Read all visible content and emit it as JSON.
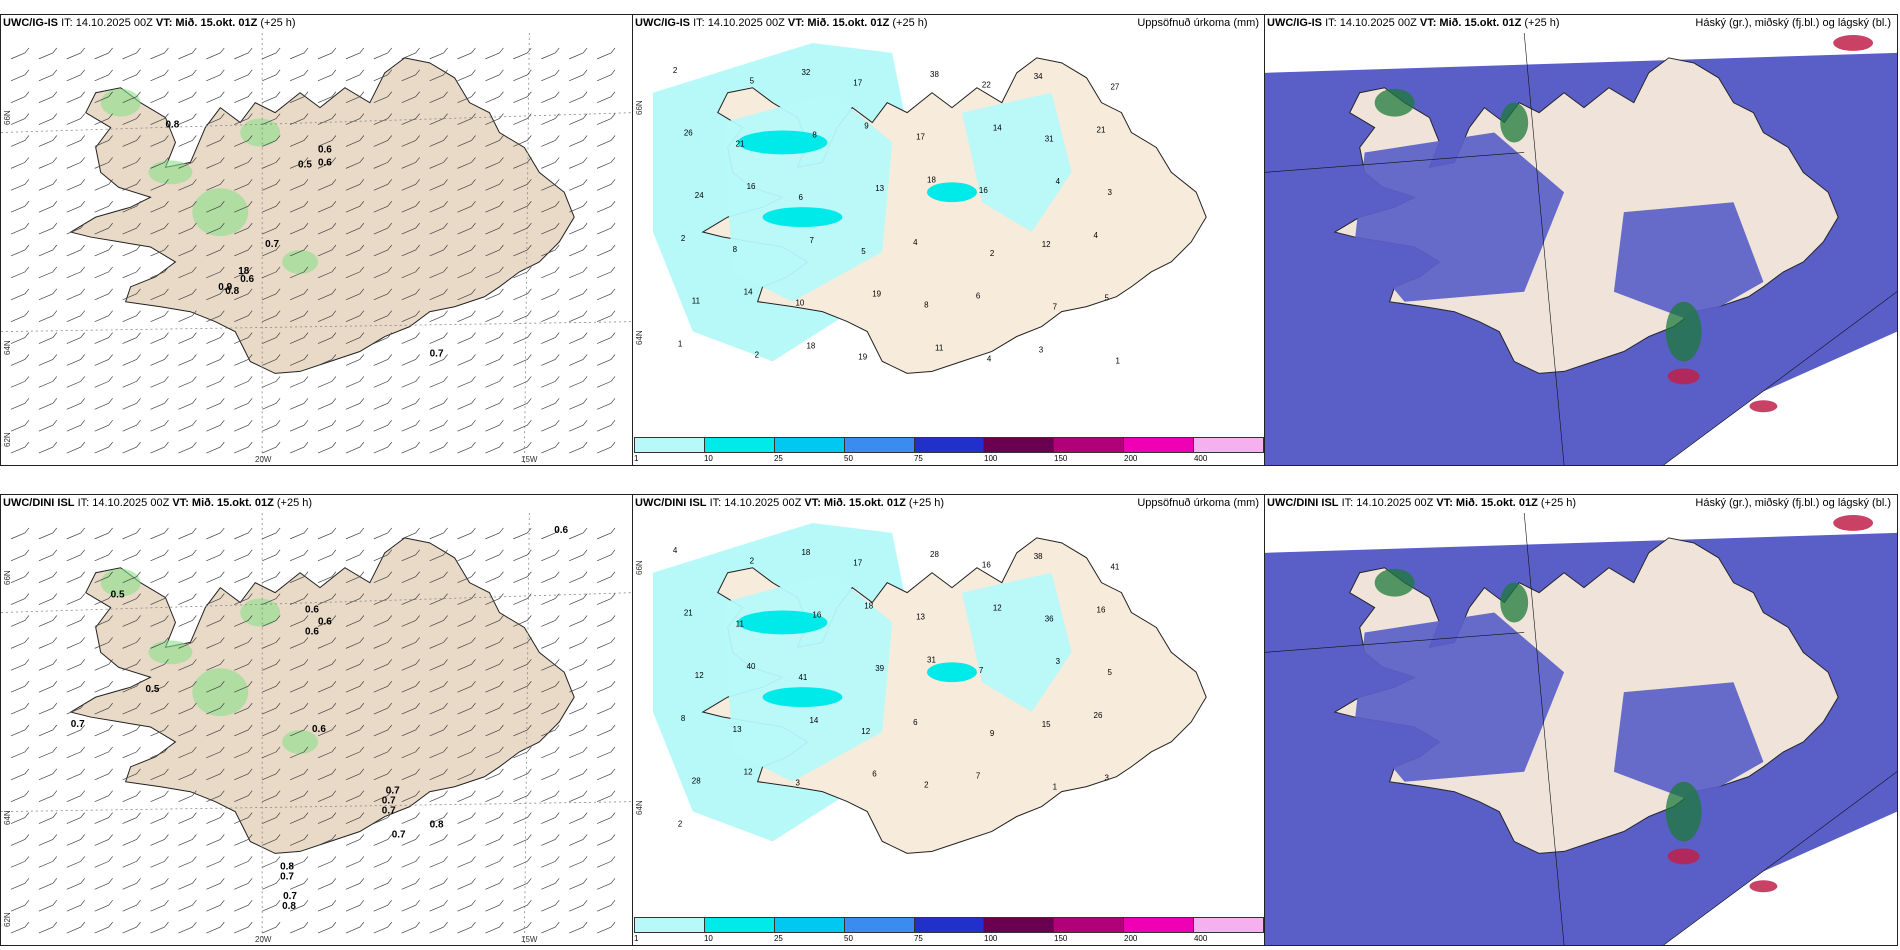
{
  "rows": [
    {
      "wind": {
        "model": "UWC/IG-IS",
        "it": "IT: 14.10.2025 00Z",
        "vt": "VT: Mið. 15.okt. 01Z",
        "lead": "(+25 h)",
        "lat_labels": [
          "66N",
          "64N",
          "62N"
        ],
        "lon_labels": [
          "20W",
          "15W"
        ],
        "values": [
          "0.8",
          "0.6",
          "0.5",
          "0.6",
          "0.7",
          "18",
          "0.6",
          "0.9",
          "0.8",
          "0.7"
        ]
      },
      "precip": {
        "model": "UWC/IG-IS",
        "it": "IT: 14.10.2025 00Z",
        "vt": "VT: Mið. 15.okt. 01Z",
        "lead": "(+25 h)",
        "right_title": "Uppsöfnuð úrkoma (mm)",
        "lat_labels": [
          "66N",
          "64N"
        ],
        "values": [
          "2",
          "5",
          "32",
          "17",
          "38",
          "22",
          "34",
          "27",
          "26",
          "21",
          "8",
          "9",
          "17",
          "14",
          "31",
          "21",
          "24",
          "16",
          "6",
          "13",
          "18",
          "16",
          "4",
          "3",
          "2",
          "8",
          "7",
          "5",
          "4",
          "2",
          "12",
          "4",
          "11",
          "14",
          "10",
          "19",
          "8",
          "6",
          "7",
          "5",
          "1",
          "2",
          "18",
          "19",
          "11",
          "4",
          "3",
          "1"
        ]
      },
      "cloud": {
        "model": "UWC/IG-IS",
        "it": "IT: 14.10.2025 00Z",
        "vt": "VT: Mið. 15.okt. 01Z",
        "lead": "(+25 h)",
        "right_title": "Háský (gr.), miðský (fj.bl.) og lágský (bl.)"
      }
    },
    {
      "wind": {
        "model": "UWC/DINI ISL",
        "it": "IT: 14.10.2025 00Z",
        "vt": "VT: Mið. 15.okt. 01Z",
        "lead": "(+25 h)",
        "lat_labels": [
          "66N",
          "64N",
          "62N"
        ],
        "lon_labels": [
          "20W",
          "15W"
        ],
        "values": [
          "0.6",
          "0.5",
          "0.6",
          "0.6",
          "0.6",
          "0.5",
          "0.7",
          "0.6",
          "0.7",
          "0.7",
          "0.7",
          "0.8",
          "0.7",
          "0.8",
          "0.7",
          "0.7",
          "0.8"
        ]
      },
      "precip": {
        "model": "UWC/DINI ISL",
        "it": "IT: 14.10.2025 00Z",
        "vt": "VT: Mið. 15.okt. 01Z",
        "lead": "(+25 h)",
        "right_title": "Uppsöfnuð úrkoma (mm)",
        "lat_labels": [
          "66N",
          "64N"
        ],
        "values": [
          "4",
          "2",
          "18",
          "17",
          "28",
          "16",
          "38",
          "41",
          "21",
          "11",
          "16",
          "18",
          "13",
          "12",
          "36",
          "16",
          "12",
          "40",
          "41",
          "39",
          "31",
          "7",
          "3",
          "5",
          "8",
          "13",
          "14",
          "12",
          "6",
          "9",
          "15",
          "26",
          "28",
          "12",
          "3",
          "6",
          "2",
          "7",
          "1",
          "3",
          "2"
        ]
      },
      "cloud": {
        "model": "UWC/DINI ISL",
        "it": "IT: 14.10.2025 00Z",
        "vt": "VT: Mið. 15.okt. 01Z",
        "lead": "(+25 h)",
        "right_title": "Háský (gr.), miðský (fj.bl.) og lágský (bl.)"
      }
    }
  ],
  "legend": {
    "ticks": [
      "1",
      "10",
      "25",
      "50",
      "75",
      "100",
      "150",
      "200",
      "400"
    ],
    "colors": [
      "#b7f9f9",
      "#00eaea",
      "#00c8f0",
      "#3a8cf0",
      "#2030c8",
      "#6a0050",
      "#b0007a",
      "#f000b4",
      "#f5b0f0"
    ]
  },
  "colors": {
    "land": "#f7ebdc",
    "land_wind": "#e9d9c7",
    "sea_cloud": "#5a5fc8",
    "precip_light": "#b7f9f9",
    "precip_mid": "#00eaea",
    "green": "#88e088",
    "darkgreen": "#1d7a3a",
    "red": "#c0204a"
  }
}
